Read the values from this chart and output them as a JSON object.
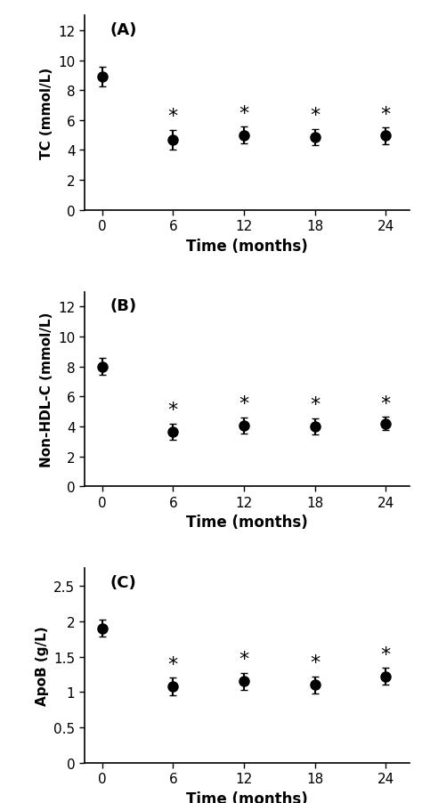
{
  "panels": [
    {
      "label": "(A)",
      "ylabel": "TC (mmol/L)",
      "xlabel": "Time (months)",
      "x": [
        0,
        6,
        12,
        18,
        24
      ],
      "y": [
        8.9,
        4.7,
        5.0,
        4.85,
        4.95
      ],
      "yerr": [
        0.65,
        0.65,
        0.55,
        0.55,
        0.55
      ],
      "ylim": [
        0,
        13
      ],
      "yticks": [
        0,
        2,
        4,
        6,
        8,
        10,
        12
      ],
      "asterisk_indices": [
        1,
        2,
        3,
        4
      ]
    },
    {
      "label": "(B)",
      "ylabel": "Non-HDL-C (mmol/L)",
      "xlabel": "Time (months)",
      "x": [
        0,
        6,
        12,
        18,
        24
      ],
      "y": [
        8.0,
        3.65,
        4.05,
        4.0,
        4.2
      ],
      "yerr": [
        0.55,
        0.55,
        0.55,
        0.55,
        0.45
      ],
      "ylim": [
        0,
        13
      ],
      "yticks": [
        0,
        2,
        4,
        6,
        8,
        10,
        12
      ],
      "asterisk_indices": [
        1,
        2,
        3,
        4
      ]
    },
    {
      "label": "(C)",
      "ylabel": "ApoB (g/L)",
      "xlabel": "Time (months)",
      "x": [
        0,
        6,
        12,
        18,
        24
      ],
      "y": [
        1.9,
        1.08,
        1.15,
        1.1,
        1.22
      ],
      "yerr": [
        0.12,
        0.12,
        0.12,
        0.12,
        0.12
      ],
      "ylim": [
        0,
        2.75
      ],
      "yticks": [
        0,
        0.5,
        1.0,
        1.5,
        2.0,
        2.5
      ],
      "asterisk_indices": [
        1,
        2,
        3,
        4
      ]
    }
  ],
  "line_color": "#000000",
  "marker": "o",
  "markersize": 8,
  "linewidth": 2.0,
  "capsize": 3,
  "elinewidth": 1.5,
  "xticks": [
    0,
    6,
    12,
    18,
    24
  ],
  "xlabel_fontsize": 12,
  "ylabel_fontsize": 11,
  "tick_fontsize": 11,
  "label_fontsize": 13,
  "asterisk_fontsize": 16
}
